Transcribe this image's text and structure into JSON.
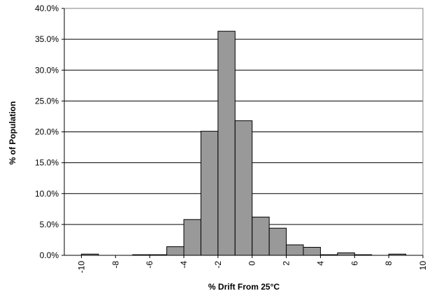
{
  "chart_data": {
    "type": "histogram",
    "x_label": "% Drift From 25°C",
    "y_label": "% of Population",
    "bins": [
      -11,
      -10,
      -9,
      -8,
      -7,
      -6,
      -5,
      -4,
      -3,
      -2,
      -1,
      0,
      1,
      2,
      3,
      4,
      5,
      6,
      7,
      8,
      9,
      10
    ],
    "values": [
      0,
      0.2,
      0,
      0,
      0.1,
      0.1,
      1.4,
      5.8,
      20.1,
      36.3,
      21.8,
      6.2,
      4.4,
      1.7,
      1.3,
      0.1,
      0.4,
      0.1,
      0,
      0.2,
      0
    ],
    "color": "#999999",
    "xlim": [
      -11,
      10
    ],
    "xticks": [
      -10,
      -8,
      -6,
      -4,
      -2,
      0,
      2,
      4,
      6,
      8,
      10
    ],
    "ylim": [
      0,
      40
    ],
    "yticks": [
      {
        "value": 0,
        "label": "0.0%"
      },
      {
        "value": 5,
        "label": "5.0%"
      },
      {
        "value": 10,
        "label": "10.0%"
      },
      {
        "value": 15,
        "label": "15.0%"
      },
      {
        "value": 20,
        "label": "20.0%"
      },
      {
        "value": 25,
        "label": "25.0%"
      },
      {
        "value": 30,
        "label": "30.0%"
      },
      {
        "value": 35,
        "label": "35.0%"
      },
      {
        "value": 40,
        "label": "40.0%"
      }
    ],
    "grid": true
  }
}
